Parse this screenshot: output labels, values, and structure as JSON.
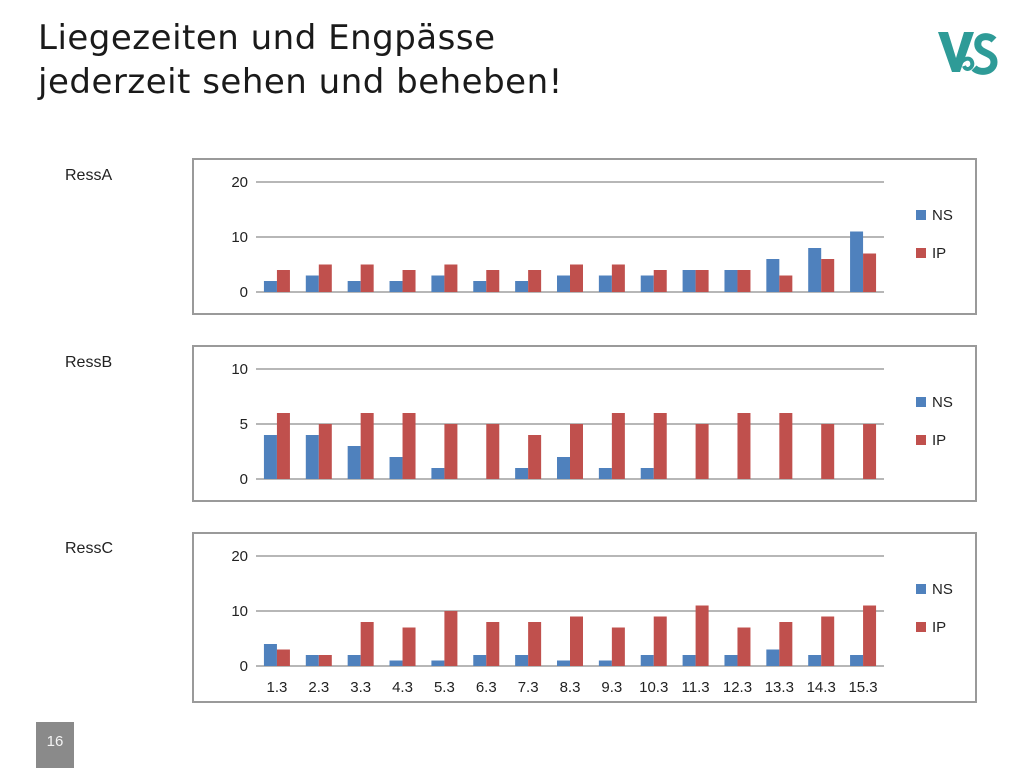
{
  "slide": {
    "title_line1": "Liegezeiten und Engpässe",
    "title_line2": "jederzeit sehen und beheben!",
    "page_number": "16",
    "logo_text": "V&S"
  },
  "colors": {
    "NS": "#4f81bd",
    "IP": "#c0504d",
    "grid": "#8c8c8c",
    "logo": "#2e9b97"
  },
  "chart_data": [
    {
      "type": "bar",
      "title": "RessA",
      "categories": [
        "1.3",
        "2.3",
        "3.3",
        "4.3",
        "5.3",
        "6.3",
        "7.3",
        "8.3",
        "9.3",
        "10.3",
        "11.3",
        "12.3",
        "13.3",
        "14.3",
        "15.3"
      ],
      "show_category_labels": false,
      "ylim": [
        0,
        20
      ],
      "yticks": [
        0,
        10,
        20
      ],
      "grid": true,
      "legend": "right",
      "series": [
        {
          "name": "NS",
          "values": [
            2,
            3,
            2,
            2,
            3,
            2,
            2,
            3,
            3,
            3,
            4,
            4,
            6,
            8,
            11
          ]
        },
        {
          "name": "IP",
          "values": [
            4,
            5,
            5,
            4,
            5,
            4,
            4,
            5,
            5,
            4,
            4,
            4,
            3,
            6,
            7
          ]
        }
      ]
    },
    {
      "type": "bar",
      "title": "RessB",
      "categories": [
        "1.3",
        "2.3",
        "3.3",
        "4.3",
        "5.3",
        "6.3",
        "7.3",
        "8.3",
        "9.3",
        "10.3",
        "11.3",
        "12.3",
        "13.3",
        "14.3",
        "15.3"
      ],
      "show_category_labels": false,
      "ylim": [
        0,
        10
      ],
      "yticks": [
        0,
        5,
        10
      ],
      "grid": true,
      "legend": "right",
      "series": [
        {
          "name": "NS",
          "values": [
            4,
            4,
            3,
            2,
            1,
            0,
            1,
            2,
            1,
            1,
            0,
            0,
            0,
            0,
            0
          ]
        },
        {
          "name": "IP",
          "values": [
            6,
            5,
            6,
            6,
            5,
            5,
            4,
            5,
            6,
            6,
            5,
            6,
            6,
            5,
            5
          ]
        }
      ]
    },
    {
      "type": "bar",
      "title": "RessC",
      "categories": [
        "1.3",
        "2.3",
        "3.3",
        "4.3",
        "5.3",
        "6.3",
        "7.3",
        "8.3",
        "9.3",
        "10.3",
        "11.3",
        "12.3",
        "13.3",
        "14.3",
        "15.3"
      ],
      "show_category_labels": true,
      "ylim": [
        0,
        20
      ],
      "yticks": [
        0,
        10,
        20
      ],
      "grid": true,
      "legend": "right",
      "series": [
        {
          "name": "NS",
          "values": [
            4,
            2,
            2,
            1,
            1,
            2,
            2,
            1,
            1,
            2,
            2,
            2,
            3,
            2,
            2
          ]
        },
        {
          "name": "IP",
          "values": [
            3,
            2,
            8,
            7,
            10,
            8,
            8,
            9,
            7,
            9,
            11,
            7,
            8,
            9,
            11
          ]
        }
      ]
    }
  ]
}
